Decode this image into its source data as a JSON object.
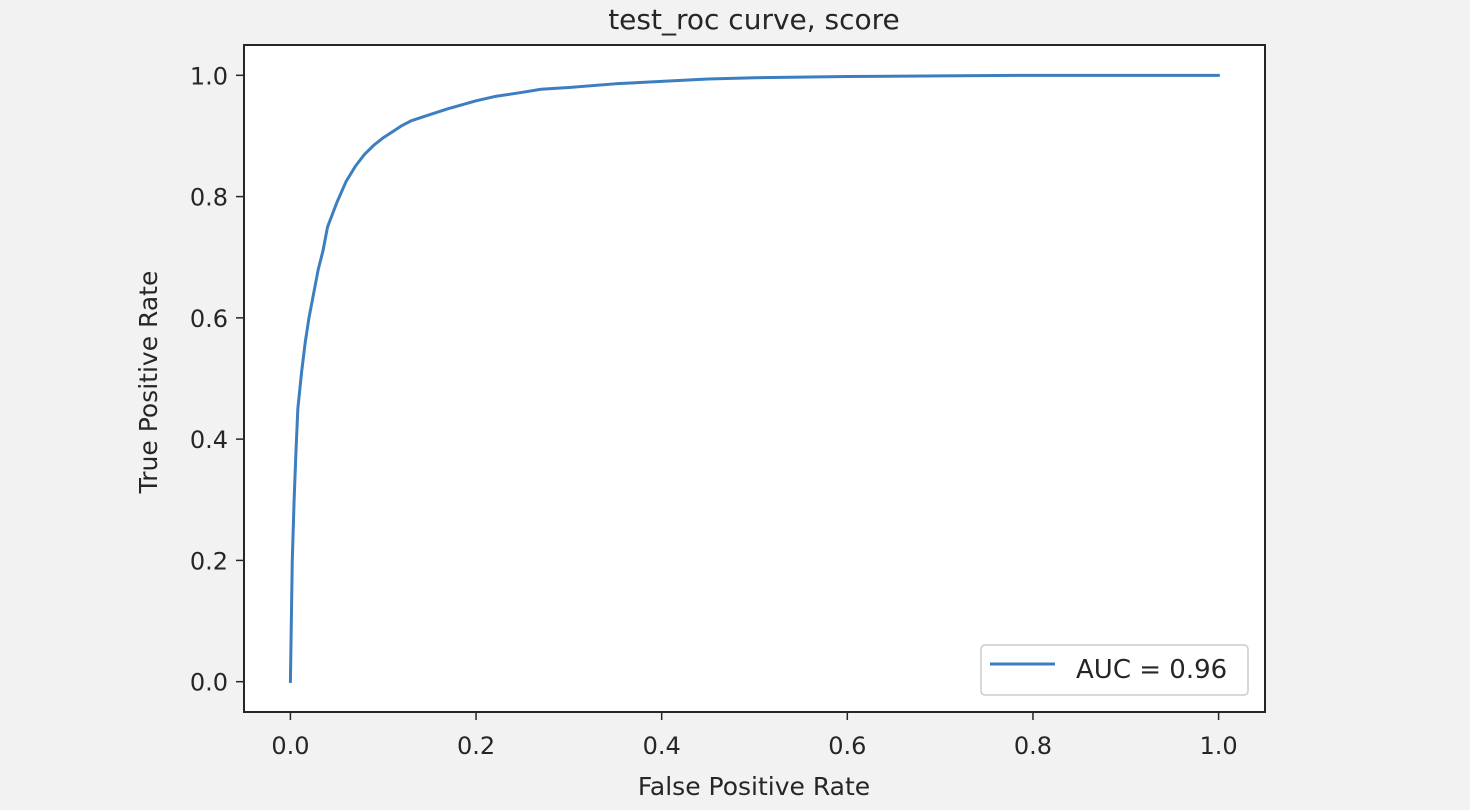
{
  "chart_data": {
    "type": "line",
    "title": "test_roc curve, score",
    "xlabel": "False Positive Rate",
    "ylabel": "True Positive Rate",
    "xlim": [
      -0.05,
      1.05
    ],
    "ylim": [
      -0.05,
      1.05
    ],
    "xticks": [
      0.0,
      0.2,
      0.4,
      0.6,
      0.8,
      1.0
    ],
    "xtick_labels": [
      "0.0",
      "0.2",
      "0.4",
      "0.6",
      "0.8",
      "1.0"
    ],
    "yticks": [
      0.0,
      0.2,
      0.4,
      0.6,
      0.8,
      1.0
    ],
    "ytick_labels": [
      "0.0",
      "0.2",
      "0.4",
      "0.6",
      "0.8",
      "1.0"
    ],
    "grid": false,
    "legend_position": "lower-right",
    "series": [
      {
        "name": "AUC = 0.96",
        "color": "#3c7ebf",
        "x": [
          0.0,
          0.001,
          0.002,
          0.004,
          0.006,
          0.008,
          0.012,
          0.016,
          0.02,
          0.025,
          0.03,
          0.035,
          0.04,
          0.05,
          0.06,
          0.07,
          0.08,
          0.09,
          0.1,
          0.11,
          0.12,
          0.13,
          0.15,
          0.17,
          0.2,
          0.22,
          0.25,
          0.27,
          0.3,
          0.35,
          0.4,
          0.45,
          0.5,
          0.6,
          0.7,
          0.8,
          0.9,
          1.0
        ],
        "y": [
          0.0,
          0.1,
          0.2,
          0.3,
          0.38,
          0.45,
          0.51,
          0.56,
          0.6,
          0.64,
          0.68,
          0.71,
          0.75,
          0.79,
          0.825,
          0.85,
          0.87,
          0.885,
          0.897,
          0.907,
          0.917,
          0.925,
          0.935,
          0.945,
          0.958,
          0.965,
          0.972,
          0.977,
          0.98,
          0.986,
          0.99,
          0.994,
          0.996,
          0.998,
          0.999,
          1.0,
          1.0,
          1.0
        ]
      }
    ]
  }
}
